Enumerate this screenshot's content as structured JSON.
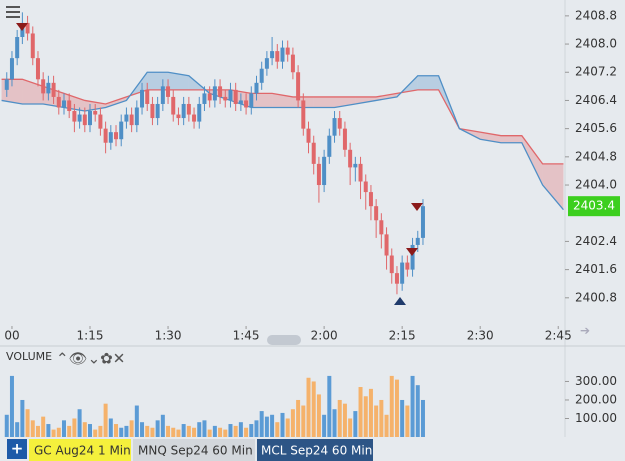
{
  "chart_data": {
    "type": "candlestick",
    "x": [
      59,
      60,
      61,
      62,
      63,
      64,
      65,
      66,
      67,
      68,
      69,
      70,
      71,
      72,
      73,
      74,
      75,
      76,
      77,
      78,
      79,
      80,
      81,
      82,
      83,
      84,
      85,
      86,
      87,
      88,
      89,
      90,
      91,
      92,
      93,
      94,
      95,
      96,
      97,
      98,
      99,
      100,
      101,
      102,
      103,
      104,
      105,
      106,
      107,
      108,
      109,
      110,
      111,
      112,
      113,
      114,
      115,
      116,
      117,
      118,
      119,
      120,
      121,
      122,
      123,
      124,
      125,
      126,
      127,
      128,
      129,
      130,
      131,
      132,
      133,
      134,
      135,
      136,
      137,
      138,
      139
    ],
    "open": [
      2406.7,
      2407.0,
      2407.6,
      2408.2,
      2408.6,
      2408.3,
      2407.6,
      2407.0,
      2406.6,
      2406.9,
      2406.5,
      2406.2,
      2406.4,
      2406.1,
      2405.8,
      2406.0,
      2405.7,
      2406.1,
      2406.0,
      2405.6,
      2405.2,
      2405.5,
      2405.3,
      2405.8,
      2406.0,
      2405.7,
      2406.2,
      2406.7,
      2406.3,
      2405.9,
      2406.3,
      2406.8,
      2406.5,
      2406.0,
      2405.9,
      2406.3,
      2406.0,
      2405.8,
      2406.3,
      2406.6,
      2406.4,
      2406.8,
      2406.5,
      2406.4,
      2406.7,
      2406.3,
      2406.4,
      2406.2,
      2406.6,
      2406.9,
      2407.3,
      2407.6,
      2407.8,
      2407.5,
      2407.9,
      2407.7,
      2407.2,
      2406.4,
      2405.6,
      2405.2,
      2404.6,
      2404.0,
      2404.8,
      2405.4,
      2405.9,
      2405.6,
      2405.0,
      2404.5,
      2404.6,
      2404.1,
      2403.8,
      2403.4,
      2403.0,
      2402.6,
      2402.0,
      2401.5,
      2401.2,
      2401.8,
      2401.6,
      2402.3,
      2402.5
    ],
    "high": [
      2407.2,
      2407.8,
      2408.4,
      2408.9,
      2408.8,
      2408.5,
      2407.8,
      2407.2,
      2407.1,
      2407.1,
      2406.7,
      2406.6,
      2406.6,
      2406.3,
      2406.2,
      2406.2,
      2406.3,
      2406.3,
      2406.2,
      2405.8,
      2405.7,
      2405.7,
      2406.0,
      2406.2,
      2406.2,
      2406.4,
      2406.9,
      2406.9,
      2406.5,
      2406.5,
      2407.0,
      2407.0,
      2406.7,
      2406.2,
      2406.5,
      2406.5,
      2406.2,
      2406.5,
      2406.8,
      2406.8,
      2407.0,
      2407.0,
      2406.7,
      2406.9,
      2406.9,
      2406.6,
      2406.6,
      2406.8,
      2407.1,
      2407.5,
      2407.8,
      2408.2,
      2408.0,
      2408.1,
      2408.1,
      2407.9,
      2407.4,
      2406.6,
      2405.8,
      2405.4,
      2404.8,
      2405.0,
      2405.6,
      2406.1,
      2406.1,
      2405.8,
      2405.2,
      2404.8,
      2404.8,
      2404.3,
      2404.0,
      2403.6,
      2403.2,
      2402.8,
      2402.2,
      2401.7,
      2402.0,
      2402.0,
      2402.5,
      2402.7,
      2403.6
    ],
    "low": [
      2406.5,
      2406.8,
      2407.4,
      2408.0,
      2408.1,
      2407.4,
      2406.8,
      2406.4,
      2406.4,
      2406.3,
      2406.0,
      2406.0,
      2405.9,
      2405.5,
      2405.6,
      2405.5,
      2405.5,
      2405.8,
      2405.4,
      2404.9,
      2405.0,
      2405.1,
      2405.1,
      2405.6,
      2405.5,
      2405.5,
      2406.0,
      2406.1,
      2405.7,
      2405.7,
      2406.1,
      2406.3,
      2405.8,
      2405.7,
      2405.7,
      2405.8,
      2405.6,
      2405.6,
      2406.1,
      2406.2,
      2406.2,
      2406.3,
      2406.2,
      2406.2,
      2406.1,
      2406.1,
      2406.0,
      2406.0,
      2406.4,
      2406.7,
      2407.1,
      2407.4,
      2407.3,
      2407.3,
      2407.5,
      2407.0,
      2406.2,
      2405.4,
      2404.9,
      2404.3,
      2403.5,
      2403.8,
      2404.6,
      2405.2,
      2405.4,
      2404.8,
      2404.0,
      2404.1,
      2403.6,
      2403.3,
      2403.0,
      2402.5,
      2402.2,
      2401.6,
      2401.2,
      2400.9,
      2401.0,
      2401.4,
      2401.4,
      2402.1,
      2402.3
    ],
    "close": [
      2407.0,
      2407.6,
      2408.2,
      2408.6,
      2408.3,
      2407.6,
      2407.0,
      2406.6,
      2406.9,
      2406.5,
      2406.2,
      2406.4,
      2406.1,
      2405.8,
      2406.0,
      2405.7,
      2406.1,
      2406.0,
      2405.6,
      2405.2,
      2405.5,
      2405.3,
      2405.8,
      2406.0,
      2405.7,
      2406.2,
      2406.7,
      2406.3,
      2405.9,
      2406.3,
      2406.8,
      2406.5,
      2406.0,
      2405.9,
      2406.3,
      2406.0,
      2405.8,
      2406.3,
      2406.6,
      2406.4,
      2406.8,
      2406.5,
      2406.4,
      2406.7,
      2406.3,
      2406.4,
      2406.2,
      2406.6,
      2406.9,
      2407.3,
      2407.6,
      2407.8,
      2407.5,
      2407.9,
      2407.7,
      2407.2,
      2406.4,
      2405.6,
      2405.2,
      2404.6,
      2404.0,
      2404.8,
      2405.4,
      2405.9,
      2405.6,
      2405.0,
      2404.5,
      2404.6,
      2404.1,
      2403.8,
      2403.4,
      2403.0,
      2402.6,
      2402.0,
      2401.5,
      2401.2,
      2401.8,
      2401.6,
      2402.3,
      2402.5,
      2403.4
    ],
    "up_color": "#4f8fc6",
    "down_color": "#e0676a",
    "xlim": [
      57.7,
      166.3
    ],
    "ylim": [
      2400.0,
      2409.25
    ],
    "xticks": [
      {
        "value": 60,
        "label": "00"
      },
      {
        "value": 75,
        "label": "1:15"
      },
      {
        "value": 90,
        "label": "1:30"
      },
      {
        "value": 105,
        "label": "1:45"
      },
      {
        "value": 120,
        "label": "2:00"
      },
      {
        "value": 135,
        "label": "2:15"
      },
      {
        "value": 150,
        "label": "2:30"
      },
      {
        "value": 165,
        "label": "2:45"
      }
    ],
    "yticks": [
      2408.8,
      {
        "value": 2408,
        "label": "2408.0"
      },
      2407.2,
      2406.4,
      2405.6,
      2404.8,
      {
        "value": 2404,
        "label": "2404.0"
      },
      2402.4,
      2401.6,
      2400.8
    ],
    "last_price": 2403.4,
    "last_price_color": "#3ccf1e",
    "cloud": {
      "x": [
        58,
        62,
        66,
        70,
        74,
        78,
        82,
        86,
        90,
        94,
        98,
        102,
        106,
        110,
        114,
        118,
        122,
        126,
        130,
        134,
        138,
        142,
        146,
        150,
        154,
        158,
        162,
        166
      ],
      "lines": [
        {
          "color": "#e0676a",
          "values": [
            2407.0,
            2407.0,
            2406.8,
            2406.6,
            2406.4,
            2406.3,
            2406.5,
            2406.7,
            2406.7,
            2406.7,
            2406.7,
            2406.7,
            2406.6,
            2406.6,
            2406.5,
            2406.5,
            2406.5,
            2406.5,
            2406.5,
            2406.6,
            2406.7,
            2406.7,
            2405.6,
            2405.5,
            2405.4,
            2405.4,
            2404.6,
            2404.6
          ]
        },
        {
          "color": "#4f8fc6",
          "values": [
            2406.4,
            2406.3,
            2406.3,
            2406.2,
            2406.1,
            2406.2,
            2406.4,
            2407.2,
            2407.2,
            2407.1,
            2406.6,
            2406.4,
            2406.2,
            2406.2,
            2406.2,
            2406.2,
            2406.2,
            2406.3,
            2406.4,
            2406.5,
            2407.1,
            2407.1,
            2405.6,
            2405.3,
            2405.2,
            2405.2,
            2404.0,
            2403.3
          ]
        }
      ]
    },
    "volume": {
      "label": "VOLUME",
      "values": [
        120,
        330,
        80,
        200,
        150,
        90,
        60,
        110,
        70,
        40,
        50,
        90,
        60,
        100,
        150,
        80,
        70,
        40,
        60,
        180,
        100,
        70,
        50,
        60,
        90,
        170,
        80,
        60,
        50,
        90,
        120,
        60,
        50,
        40,
        70,
        60,
        50,
        80,
        90,
        40,
        60,
        50,
        40,
        70,
        60,
        80,
        50,
        70,
        90,
        140,
        110,
        120,
        80,
        130,
        100,
        150,
        200,
        170,
        320,
        300,
        230,
        120,
        330,
        150,
        200,
        180,
        100,
        140,
        270,
        220,
        260,
        170,
        200,
        120,
        330,
        310,
        200,
        170,
        330,
        280,
        200
      ],
      "up_color": "#5b9bd5",
      "down_color": "#f5b26b",
      "ylim": [
        0,
        390
      ],
      "yticks": [
        {
          "value": 300,
          "label": "300.00"
        },
        {
          "value": 200,
          "label": "200.00"
        },
        {
          "value": 100,
          "label": "100.00"
        }
      ]
    },
    "tabs": [
      "GC Aug24 1 Min",
      "MNQ Sep24 60 Min",
      "MCL Sep24 60 Min"
    ]
  }
}
